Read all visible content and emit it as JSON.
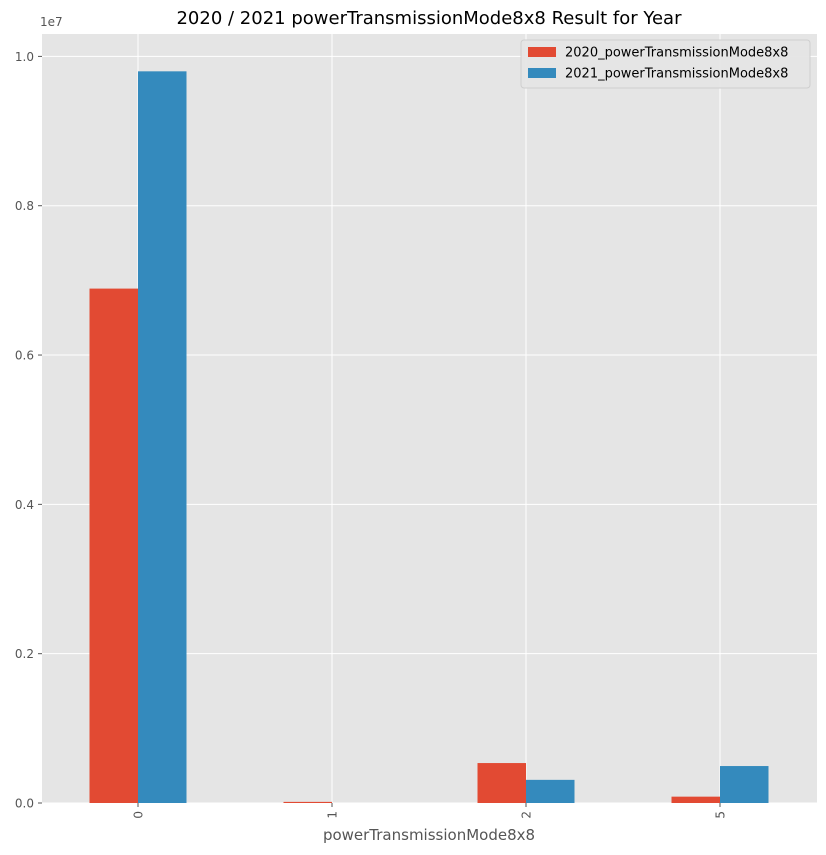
{
  "chart_data": {
    "type": "bar",
    "title": "2020 / 2021 powerTransmissionMode8x8 Result for Year",
    "xlabel": "powerTransmissionMode8x8",
    "ylabel": "",
    "y_offset_label": "1e7",
    "categories": [
      "0",
      "1",
      "2",
      "5"
    ],
    "ylim": [
      0,
      10300000
    ],
    "yticks": [
      0,
      2000000,
      4000000,
      6000000,
      8000000,
      10000000
    ],
    "ytick_labels": [
      "0.0",
      "0.2",
      "0.4",
      "0.6",
      "0.8",
      "1.0"
    ],
    "grid": true,
    "legend_position": "top-right",
    "series": [
      {
        "name": "2020_powerTransmissionMode8x8",
        "color": "#E24A33",
        "values": [
          6890000,
          15000,
          535000,
          85000
        ]
      },
      {
        "name": "2021_powerTransmissionMode8x8",
        "color": "#348ABD",
        "values": [
          9800000,
          0,
          310000,
          495000
        ]
      }
    ]
  },
  "colors": {
    "plot_background": "#E5E5E5",
    "grid": "#FFFFFF",
    "tick_text": "#555555",
    "label_text": "#555555"
  }
}
